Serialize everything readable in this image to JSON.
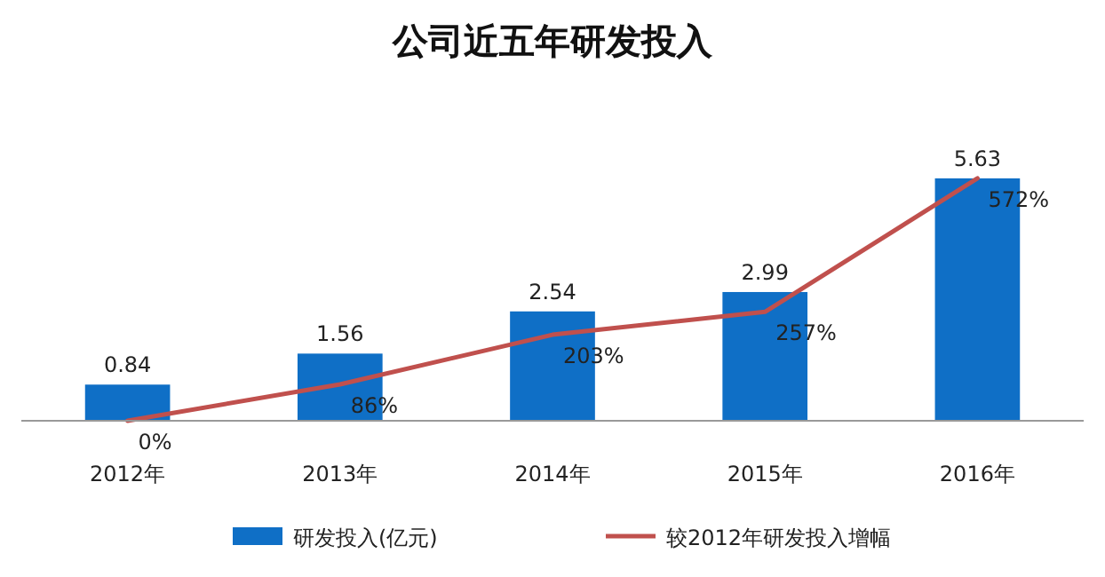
{
  "chart_data": {
    "type": "bar",
    "title": "公司近五年研发投入",
    "categories": [
      "2012年",
      "2013年",
      "2014年",
      "2015年",
      "2016年"
    ],
    "series": [
      {
        "name": "研发投入(亿元)",
        "color": "#0f6fc6",
        "values": [
          0.84,
          1.56,
          2.54,
          2.99,
          5.63
        ]
      },
      {
        "name": "较2012年研发投入增幅",
        "type": "line",
        "axis": "y2",
        "color": "#c0504d",
        "values": [
          0,
          86,
          203,
          257,
          572
        ],
        "value_labels": [
          "0%",
          "86%",
          "203%",
          "257%",
          "572%"
        ]
      }
    ],
    "data_labels": true,
    "legend": "bottom",
    "marker": "none"
  }
}
